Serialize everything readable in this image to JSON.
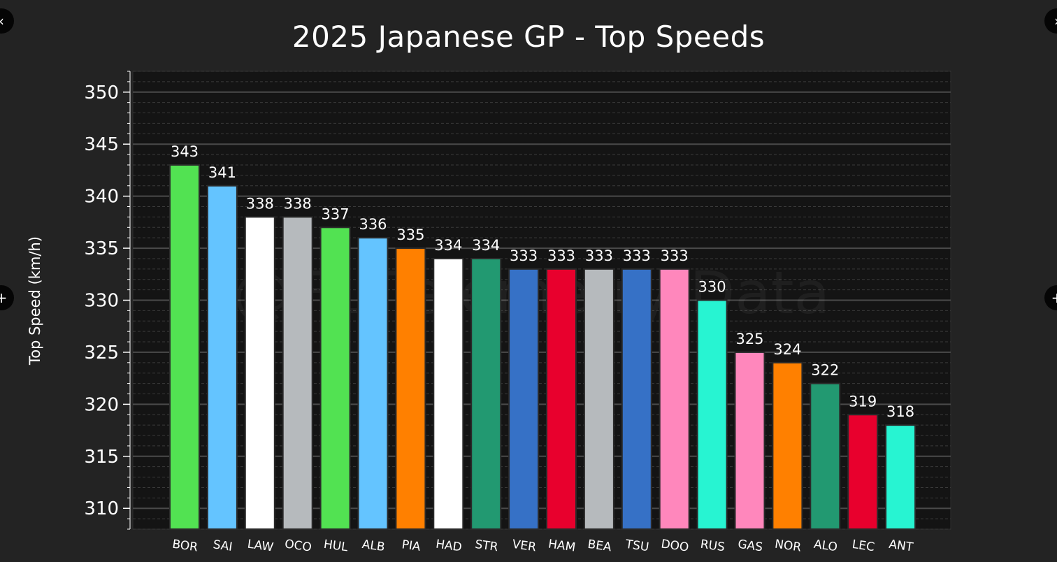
{
  "chart_data": {
    "type": "bar",
    "title": "2025 Japanese GP - Top Speeds",
    "xlabel": "",
    "ylabel": "Top Speed (km/h)",
    "ylim": [
      308,
      352
    ],
    "yticks": [
      310,
      315,
      320,
      325,
      330,
      335,
      340,
      345,
      350
    ],
    "grid": true,
    "categories": [
      "BOR",
      "SAI",
      "LAW",
      "OCO",
      "HUL",
      "ALB",
      "PIA",
      "HAD",
      "STR",
      "VER",
      "HAM",
      "BEA",
      "TSU",
      "DOO",
      "RUS",
      "GAS",
      "NOR",
      "ALO",
      "LEC",
      "ANT"
    ],
    "values": [
      343,
      341,
      338,
      338,
      337,
      336,
      335,
      334,
      334,
      333,
      333,
      333,
      333,
      333,
      330,
      325,
      324,
      322,
      319,
      318
    ],
    "bar_colors": [
      "#52e252",
      "#64c4ff",
      "#ffffff",
      "#b6babd",
      "#52e252",
      "#64c4ff",
      "#ff8000",
      "#ffffff",
      "#229971",
      "#3671c6",
      "#e8002d",
      "#b6babd",
      "#3671c6",
      "#ff87bc",
      "#27f4d2",
      "#ff87bc",
      "#ff8000",
      "#229971",
      "#e8002d",
      "#27f4d2"
    ],
    "watermark": "@F1 Telemetry Data"
  },
  "nav": {
    "prev_icon": "‹",
    "next_icon": "›",
    "left_mid_icon": "+",
    "right_mid_icon": "+"
  }
}
